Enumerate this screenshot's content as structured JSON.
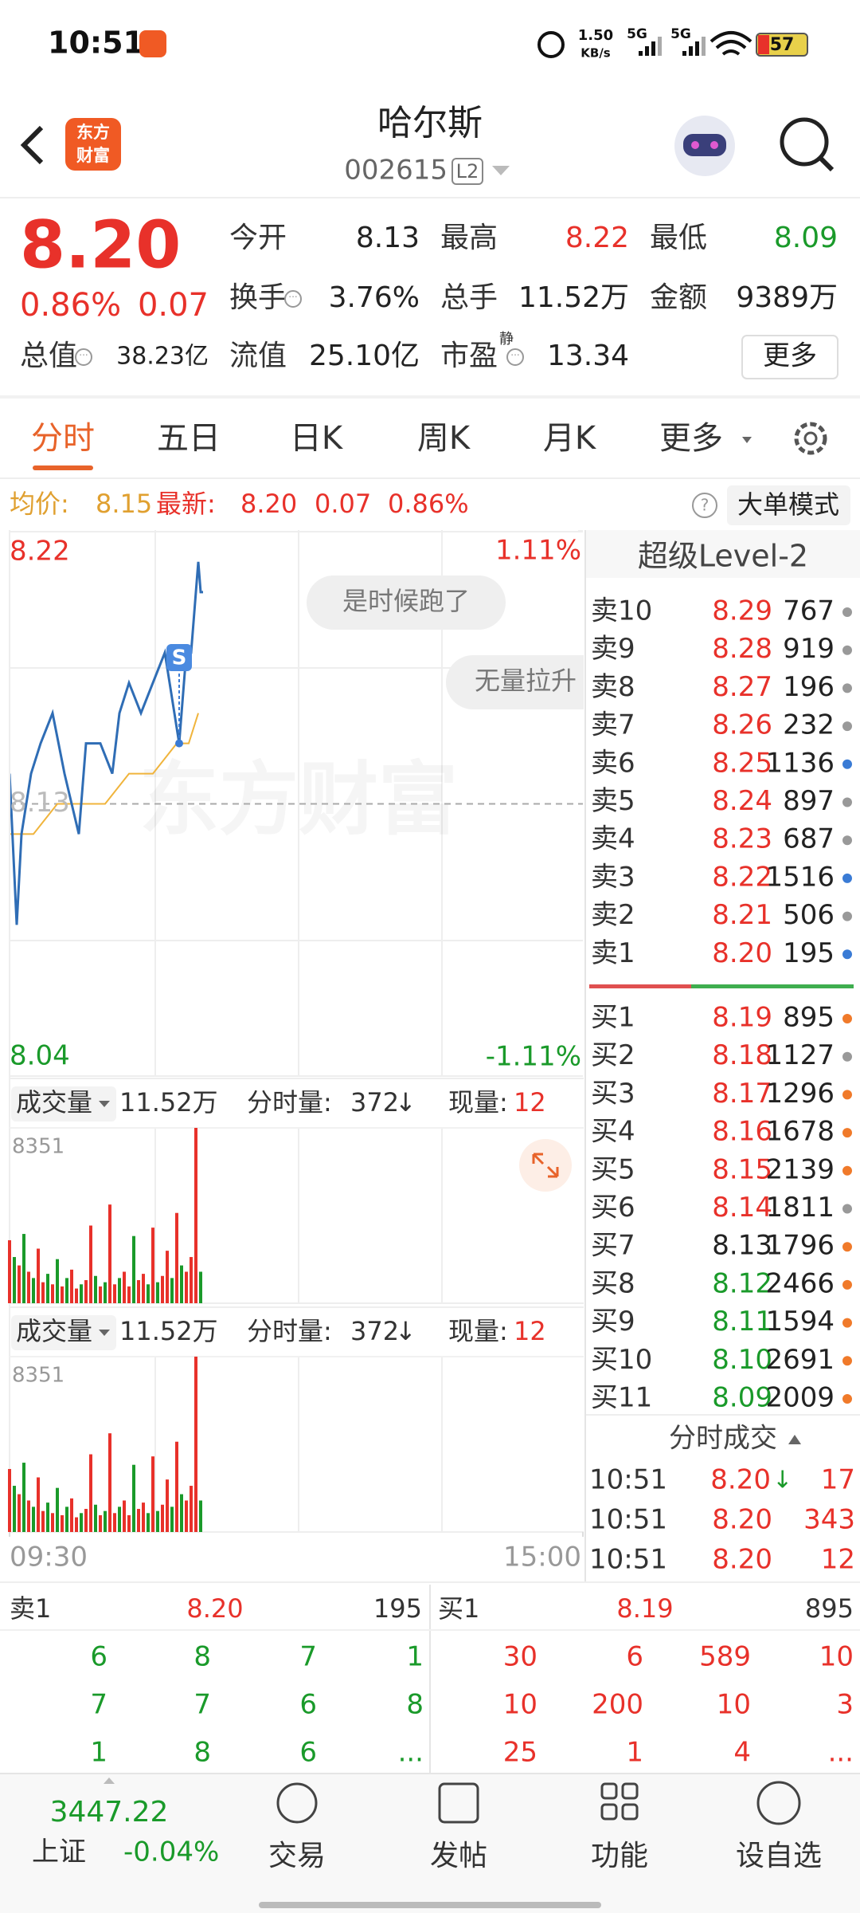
{
  "status_bar": {
    "time": "10:51",
    "net_speed": "1.50",
    "net_unit": "KB/s",
    "signal1": "5G",
    "signal2": "5G",
    "battery": "57"
  },
  "header": {
    "title": "哈尔斯",
    "code": "002615",
    "level": "L2",
    "logo": [
      "东方",
      "财富"
    ]
  },
  "quote": {
    "price": "8.20",
    "change_pct": "0.86%",
    "change": "0.07",
    "more": "更多",
    "stats": [
      [
        {
          "label": "今开",
          "value": "8.13",
          "color": "#222222"
        },
        {
          "label": "最高",
          "value": "8.22",
          "color": "#e8312a"
        },
        {
          "label": "最低",
          "value": "8.09",
          "color": "#1a9a2a"
        }
      ],
      [
        {
          "label": "换手",
          "value": "3.76%",
          "color": "#222222",
          "info": true
        },
        {
          "label": "总手",
          "value": "11.52万",
          "color": "#222222"
        },
        {
          "label": "金额",
          "value": "9389万",
          "color": "#222222"
        }
      ],
      [
        {
          "label": "总值",
          "value": "38.23亿",
          "color": "#222222",
          "info": true
        },
        {
          "label": "流值",
          "value": "25.10亿",
          "color": "#222222"
        },
        {
          "label": "市盈",
          "sup": "静",
          "value": "13.34",
          "color": "#222222",
          "info": true
        }
      ]
    ]
  },
  "tabs": {
    "items": [
      "分时",
      "五日",
      "日K",
      "周K",
      "月K",
      "更多"
    ],
    "active": 0
  },
  "info_bar": {
    "avg_label": "均价:",
    "avg": "8.15",
    "latest_label": "最新:",
    "latest": "8.20",
    "change": "0.07",
    "change_pct": "0.86%",
    "mode": "大单模式"
  },
  "intraday": {
    "type": "line",
    "ylim": [
      8.04,
      8.22
    ],
    "yticks": [
      8.22,
      8.13,
      8.04
    ],
    "base": 8.13,
    "pct_ticks": [
      {
        "value": 1.11,
        "label": "1.11%"
      },
      {
        "value": -1.11,
        "label": "-1.11%"
      }
    ],
    "xlim": [
      0,
      240
    ],
    "xticks": [
      {
        "value": 0,
        "label": "09:30"
      },
      {
        "value": 240,
        "label": "15:00"
      }
    ],
    "series": [
      {
        "color": "#2f6db5",
        "minutes": [
          0,
          3,
          5,
          9,
          13,
          18,
          23,
          29,
          32,
          38,
          43,
          46,
          50,
          55,
          60,
          65,
          71,
          74,
          76,
          79,
          80,
          81
        ],
        "values": [
          8.14,
          8.09,
          8.12,
          8.14,
          8.15,
          8.16,
          8.14,
          8.12,
          8.15,
          8.15,
          8.14,
          8.16,
          8.17,
          8.16,
          8.17,
          8.18,
          8.15,
          8.18,
          8.18,
          8.21,
          8.2,
          8.2
        ]
      },
      {
        "color": "#f0b43c",
        "minutes": [
          0,
          10,
          20,
          30,
          40,
          50,
          60,
          70,
          75,
          79
        ],
        "values": [
          8.12,
          8.12,
          8.13,
          8.13,
          8.13,
          8.14,
          8.14,
          8.15,
          8.15,
          8.16
        ]
      }
    ],
    "annotations": [
      "是时候跑了",
      "无量拉升"
    ],
    "signal": {
      "minute": 71,
      "value": 8.15,
      "label": "S"
    },
    "watermark": "东方财富"
  },
  "volume_panel": {
    "label": "成交量",
    "total": "11.52万",
    "period_label": "分时量:",
    "period": "372",
    "arrow": "↓",
    "current_label": "现量:",
    "current": "12",
    "ylim": [
      0,
      8351
    ],
    "yticks": [
      8351
    ],
    "up_color": "#e8312a",
    "down_color": "#1a9a2a",
    "minutes": [
      0,
      2,
      4,
      6,
      8,
      10,
      12,
      14,
      16,
      18,
      20,
      22,
      24,
      26,
      28,
      30,
      32,
      34,
      36,
      38,
      40,
      42,
      44,
      46,
      48,
      50,
      52,
      54,
      56,
      58,
      60,
      62,
      64,
      66,
      68,
      70,
      72,
      74,
      76,
      78,
      80
    ],
    "values": [
      3000,
      2200,
      1800,
      3300,
      1500,
      1200,
      2600,
      1000,
      1400,
      900,
      2100,
      800,
      1200,
      1600,
      700,
      900,
      1100,
      3700,
      1300,
      800,
      1000,
      4700,
      900,
      1200,
      1500,
      800,
      3200,
      1100,
      1400,
      900,
      3600,
      1000,
      1300,
      2500,
      1200,
      4300,
      1800,
      1500,
      2200,
      8351,
      1500
    ],
    "up": [
      true,
      false,
      true,
      false,
      true,
      false,
      true,
      true,
      false,
      true,
      false,
      true,
      false,
      true,
      true,
      false,
      true,
      true,
      false,
      true,
      false,
      true,
      true,
      false,
      true,
      true,
      false,
      true,
      true,
      false,
      true,
      false,
      true,
      true,
      false,
      true,
      false,
      true,
      true,
      true,
      false
    ]
  },
  "level2": {
    "title": "超级Level-2",
    "asks": [
      {
        "label": "卖10",
        "price": "8.29",
        "volume": "767",
        "dot": "#999999"
      },
      {
        "label": "卖9",
        "price": "8.28",
        "volume": "919",
        "dot": "#999999"
      },
      {
        "label": "卖8",
        "price": "8.27",
        "volume": "196",
        "dot": "#999999"
      },
      {
        "label": "卖7",
        "price": "8.26",
        "volume": "232",
        "dot": "#999999"
      },
      {
        "label": "卖6",
        "price": "8.25",
        "volume": "1136",
        "dot": "#3a7bd5"
      },
      {
        "label": "卖5",
        "price": "8.24",
        "volume": "897",
        "dot": "#999999"
      },
      {
        "label": "卖4",
        "price": "8.23",
        "volume": "687",
        "dot": "#999999"
      },
      {
        "label": "卖3",
        "price": "8.22",
        "volume": "1516",
        "dot": "#3a7bd5"
      },
      {
        "label": "卖2",
        "price": "8.21",
        "volume": "506",
        "dot": "#999999"
      },
      {
        "label": "卖1",
        "price": "8.20",
        "volume": "195",
        "dot": "#3a7bd5"
      }
    ],
    "bids": [
      {
        "label": "买1",
        "price": "8.19",
        "volume": "895",
        "color": "#e8312a",
        "dot": "#f07a2a"
      },
      {
        "label": "买2",
        "price": "8.18",
        "volume": "1127",
        "color": "#e8312a",
        "dot": "#999999"
      },
      {
        "label": "买3",
        "price": "8.17",
        "volume": "1296",
        "color": "#e8312a",
        "dot": "#f07a2a"
      },
      {
        "label": "买4",
        "price": "8.16",
        "volume": "1678",
        "color": "#e8312a",
        "dot": "#f07a2a"
      },
      {
        "label": "买5",
        "price": "8.15",
        "volume": "2139",
        "color": "#e8312a",
        "dot": "#f07a2a"
      },
      {
        "label": "买6",
        "price": "8.14",
        "volume": "1811",
        "color": "#e8312a",
        "dot": "#999999"
      },
      {
        "label": "买7",
        "price": "8.13",
        "volume": "1796",
        "color": "#222222",
        "dot": "#f07a2a"
      },
      {
        "label": "买8",
        "price": "8.12",
        "volume": "2466",
        "color": "#1a9a2a",
        "dot": "#f07a2a"
      },
      {
        "label": "买9",
        "price": "8.11",
        "volume": "1594",
        "color": "#1a9a2a",
        "dot": "#f07a2a"
      },
      {
        "label": "买10",
        "price": "8.10",
        "volume": "2691",
        "color": "#1a9a2a",
        "dot": "#f07a2a"
      },
      {
        "label": "买11",
        "price": "8.09",
        "volume": "2009",
        "color": "#1a9a2a",
        "dot": "#f07a2a"
      }
    ]
  },
  "trades": {
    "title": "分时成交",
    "rows": [
      {
        "time": "10:51",
        "price": "8.20",
        "arrow": "↓",
        "volume": "17"
      },
      {
        "time": "10:51",
        "price": "8.20",
        "volume": "343"
      },
      {
        "time": "10:51",
        "price": "8.20",
        "volume": "12"
      }
    ]
  },
  "queue": {
    "ask": {
      "label": "卖1",
      "price": "8.20",
      "volume": "195",
      "orders": [
        [
          "6",
          "8",
          "7",
          "1"
        ],
        [
          "7",
          "7",
          "6",
          "8"
        ],
        [
          "1",
          "8",
          "6",
          "..."
        ]
      ]
    },
    "bid": {
      "label": "买1",
      "price": "8.19",
      "volume": "895",
      "orders": [
        [
          "30",
          "6",
          "589",
          "10"
        ],
        [
          "10",
          "200",
          "10",
          "3"
        ],
        [
          "25",
          "1",
          "4",
          "..."
        ]
      ]
    }
  },
  "bottom_nav": {
    "index_value": "3447.22",
    "index_name": "上证",
    "index_change": "-0.04%",
    "items": [
      "交易",
      "发帖",
      "功能",
      "设自选"
    ]
  }
}
